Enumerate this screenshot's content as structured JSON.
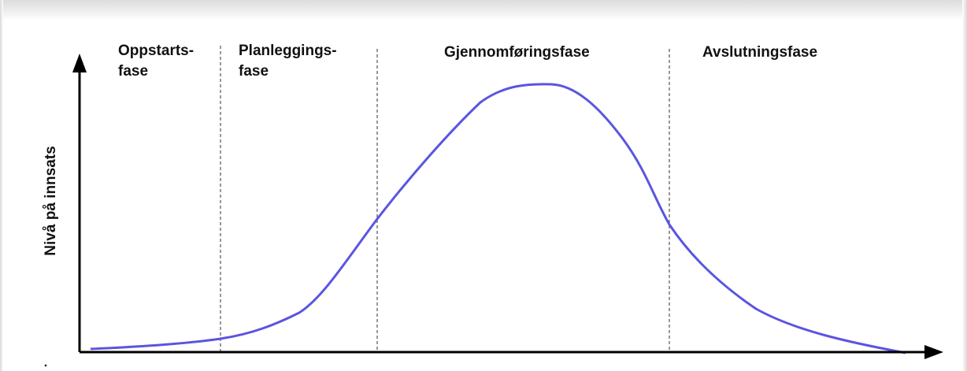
{
  "diagram": {
    "y_axis_label": "Nivå på innsats",
    "phases": [
      {
        "name": "Oppstarts-fase",
        "lines": [
          "Oppstarts-",
          "fase"
        ]
      },
      {
        "name": "Planleggings-fase",
        "lines": [
          "Planleggings-",
          "fase"
        ]
      },
      {
        "name": "Gjennomføringsfase",
        "lines": [
          "Gjennomføringsfase"
        ]
      },
      {
        "name": "Avslutningsfase",
        "lines": [
          "Avslutningsfase"
        ]
      }
    ],
    "colors": {
      "curve": "#5a55e0",
      "axis": "#000000",
      "divider": "#777777"
    }
  }
}
